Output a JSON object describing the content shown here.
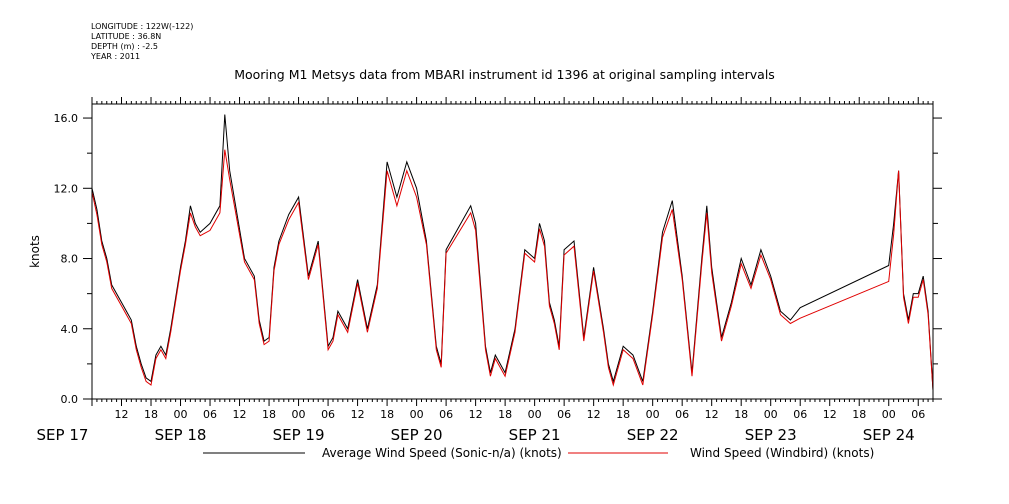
{
  "meta": {
    "longitude": "LONGITUDE : 122W(-122)",
    "latitude": "LATITUDE : 36.8N",
    "depth": "DEPTH (m) : -2.5",
    "year": "YEAR : 2011"
  },
  "colors": {
    "sonic": "#000000",
    "windbird": "#e00000"
  },
  "chart_data": {
    "type": "line",
    "title": "Mooring M1 Metsys data from MBARI instrument id 1396 at original sampling intervals",
    "ylabel": "knots",
    "xlabel": "",
    "ylim": [
      0,
      16.8
    ],
    "yticks": [
      "0.0",
      "4.0",
      "8.0",
      "12.0",
      "16.0"
    ],
    "xlim_hours": [
      "2011-09-17 06:00",
      "2011-09-24 09:00"
    ],
    "hour_ticks": [
      "12",
      "18",
      "00",
      "06",
      "12",
      "18",
      "00",
      "06",
      "12",
      "18",
      "00",
      "06",
      "12",
      "18",
      "00",
      "06",
      "12",
      "18",
      "00",
      "06",
      "12",
      "18",
      "00",
      "06",
      "12",
      "18",
      "00",
      "06"
    ],
    "day_labels": [
      "SEP 17",
      "SEP 18",
      "SEP 19",
      "SEP 20",
      "SEP 21",
      "SEP 22",
      "SEP 23",
      "SEP 24"
    ],
    "legend": [
      "Average Wind Speed (Sonic-n/a) (knots)",
      "Wind Speed (Windbird) (knots)"
    ],
    "series": [
      {
        "name": "Average Wind Speed (Sonic-n/a) (knots)",
        "x": [
          "09-17 06:00",
          "09-17 07:00",
          "09-17 08:00",
          "09-17 09:00",
          "09-17 10:00",
          "09-17 12:00",
          "09-17 14:00",
          "09-17 15:00",
          "09-17 16:00",
          "09-17 17:00",
          "09-17 18:00",
          "09-17 19:00",
          "09-17 20:00",
          "09-17 21:00",
          "09-17 22:00",
          "09-18 00:00",
          "09-18 01:00",
          "09-18 02:00",
          "09-18 03:00",
          "09-18 04:00",
          "09-18 06:00",
          "09-18 08:00",
          "09-18 09:00",
          "09-18 10:00",
          "09-18 13:00",
          "09-18 15:00",
          "09-18 16:00",
          "09-18 17:00",
          "09-18 18:00",
          "09-18 19:00",
          "09-18 20:00",
          "09-18 22:00",
          "09-19 00:00",
          "09-19 02:00",
          "09-19 04:00",
          "09-19 06:00",
          "09-19 07:00",
          "09-19 08:00",
          "09-19 10:00",
          "09-19 12:00",
          "09-19 14:00",
          "09-19 16:00",
          "09-19 18:00",
          "09-19 20:00",
          "09-19 22:00",
          "09-20 00:00",
          "09-20 02:00",
          "09-20 04:00",
          "09-20 05:00",
          "09-20 06:00",
          "09-20 11:00",
          "09-20 12:00",
          "09-20 14:00",
          "09-20 15:00",
          "09-20 16:00",
          "09-20 18:00",
          "09-20 20:00",
          "09-20 22:00",
          "09-21 00:00",
          "09-21 01:00",
          "09-21 02:00",
          "09-21 03:00",
          "09-21 04:00",
          "09-21 05:00",
          "09-21 06:00",
          "09-21 08:00",
          "09-21 10:00",
          "09-21 12:00",
          "09-21 14:00",
          "09-21 15:00",
          "09-21 16:00",
          "09-21 18:00",
          "09-21 20:00",
          "09-21 22:00",
          "09-22 00:00",
          "09-22 02:00",
          "09-22 04:00",
          "09-22 06:00",
          "09-22 08:00",
          "09-22 10:00",
          "09-22 11:00",
          "09-22 12:00",
          "09-22 14:00",
          "09-22 16:00",
          "09-22 18:00",
          "09-22 20:00",
          "09-22 22:00",
          "09-23 00:00",
          "09-23 02:00",
          "09-23 04:00",
          "09-23 06:00",
          "09-24 00:00",
          "09-24 01:00",
          "09-24 02:00",
          "09-24 03:00",
          "09-24 04:00",
          "09-24 05:00",
          "09-24 06:00",
          "09-24 07:00",
          "09-24 08:00",
          "09-24 09:00"
        ],
        "y": [
          12.0,
          10.8,
          9.0,
          8.0,
          6.5,
          5.5,
          4.5,
          3.0,
          2.0,
          1.2,
          1.0,
          2.5,
          3.0,
          2.5,
          4.0,
          7.5,
          9.0,
          11.0,
          10.0,
          9.5,
          10.0,
          11.0,
          16.2,
          13.0,
          8.0,
          7.0,
          4.5,
          3.3,
          3.5,
          7.5,
          9.0,
          10.5,
          11.5,
          7.0,
          9.0,
          3.0,
          3.5,
          5.0,
          4.0,
          6.8,
          4.0,
          6.5,
          13.5,
          11.5,
          13.5,
          12.0,
          9.0,
          3.0,
          2.0,
          8.5,
          11.0,
          10.0,
          3.0,
          1.5,
          2.5,
          1.5,
          4.0,
          8.5,
          8.0,
          10.0,
          9.0,
          5.5,
          4.5,
          3.0,
          8.5,
          9.0,
          3.5,
          7.5,
          4.0,
          2.0,
          1.0,
          3.0,
          2.5,
          1.0,
          5.0,
          9.5,
          11.3,
          7.0,
          1.5,
          8.0,
          11.0,
          7.5,
          3.5,
          5.5,
          8.0,
          6.5,
          8.5,
          7.0,
          5.0,
          4.5,
          5.2,
          7.6,
          10.0,
          13.0,
          6.0,
          4.5,
          6.0,
          6.0,
          7.0,
          5.0,
          0.5
        ]
      },
      {
        "name": "Wind Speed (Windbird) (knots)",
        "x": [
          "09-17 06:00",
          "09-17 07:00",
          "09-17 08:00",
          "09-17 09:00",
          "09-17 10:00",
          "09-17 12:00",
          "09-17 14:00",
          "09-17 15:00",
          "09-17 16:00",
          "09-17 17:00",
          "09-17 18:00",
          "09-17 19:00",
          "09-17 20:00",
          "09-17 21:00",
          "09-17 22:00",
          "09-18 00:00",
          "09-18 01:00",
          "09-18 02:00",
          "09-18 03:00",
          "09-18 04:00",
          "09-18 06:00",
          "09-18 08:00",
          "09-18 09:00",
          "09-18 10:00",
          "09-18 13:00",
          "09-18 15:00",
          "09-18 16:00",
          "09-18 17:00",
          "09-18 18:00",
          "09-18 19:00",
          "09-18 20:00",
          "09-18 22:00",
          "09-19 00:00",
          "09-19 02:00",
          "09-19 04:00",
          "09-19 06:00",
          "09-19 07:00",
          "09-19 08:00",
          "09-19 10:00",
          "09-19 12:00",
          "09-19 14:00",
          "09-19 16:00",
          "09-19 18:00",
          "09-19 20:00",
          "09-19 22:00",
          "09-20 00:00",
          "09-20 02:00",
          "09-20 04:00",
          "09-20 05:00",
          "09-20 06:00",
          "09-20 11:00",
          "09-20 12:00",
          "09-20 14:00",
          "09-20 15:00",
          "09-20 16:00",
          "09-20 18:00",
          "09-20 20:00",
          "09-20 22:00",
          "09-21 00:00",
          "09-21 01:00",
          "09-21 02:00",
          "09-21 03:00",
          "09-21 04:00",
          "09-21 05:00",
          "09-21 06:00",
          "09-21 08:00",
          "09-21 10:00",
          "09-21 12:00",
          "09-21 14:00",
          "09-21 15:00",
          "09-21 16:00",
          "09-21 18:00",
          "09-21 20:00",
          "09-21 22:00",
          "09-22 00:00",
          "09-22 02:00",
          "09-22 04:00",
          "09-22 06:00",
          "09-22 08:00",
          "09-22 10:00",
          "09-22 11:00",
          "09-22 12:00",
          "09-22 14:00",
          "09-22 16:00",
          "09-22 18:00",
          "09-22 20:00",
          "09-22 22:00",
          "09-23 00:00",
          "09-23 02:00",
          "09-23 04:00",
          "09-23 06:00",
          "09-24 00:00",
          "09-24 01:00",
          "09-24 02:00",
          "09-24 03:00",
          "09-24 04:00",
          "09-24 05:00",
          "09-24 06:00",
          "09-24 07:00",
          "09-24 08:00",
          "09-24 09:00"
        ],
        "y": [
          11.8,
          10.5,
          8.8,
          7.8,
          6.3,
          5.3,
          4.3,
          2.8,
          1.8,
          1.0,
          0.8,
          2.3,
          2.8,
          2.3,
          3.8,
          7.3,
          8.8,
          10.6,
          9.8,
          9.3,
          9.6,
          10.6,
          14.2,
          12.5,
          7.8,
          6.8,
          4.3,
          3.1,
          3.3,
          7.3,
          8.8,
          10.2,
          11.2,
          6.8,
          8.8,
          2.8,
          3.3,
          4.8,
          3.8,
          6.6,
          3.8,
          6.3,
          13.0,
          11.0,
          13.0,
          11.5,
          8.8,
          2.8,
          1.8,
          8.3,
          10.6,
          9.6,
          2.8,
          1.3,
          2.3,
          1.3,
          3.8,
          8.3,
          7.8,
          9.7,
          8.7,
          5.3,
          4.3,
          2.8,
          8.2,
          8.7,
          3.3,
          7.3,
          3.8,
          1.8,
          0.8,
          2.8,
          2.3,
          0.8,
          4.8,
          9.2,
          10.8,
          6.8,
          1.3,
          7.7,
          10.6,
          7.2,
          3.3,
          5.3,
          7.7,
          6.3,
          8.2,
          6.8,
          4.8,
          4.3,
          4.6,
          6.7,
          9.4,
          13.0,
          5.8,
          4.3,
          5.8,
          5.8,
          6.8,
          4.8,
          0.5
        ]
      }
    ]
  }
}
